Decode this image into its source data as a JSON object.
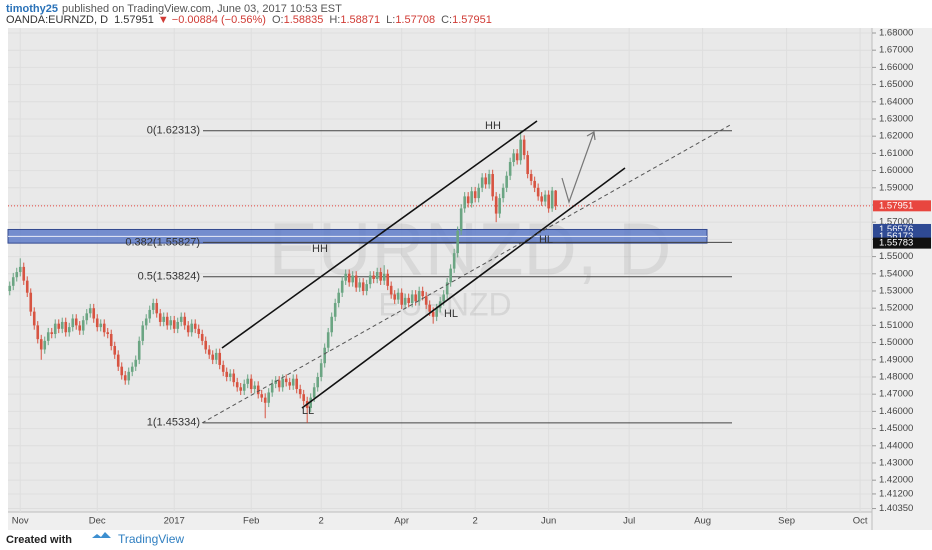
{
  "header": {
    "author": "timothy25",
    "published": "published on TradingView.com, June 03, 2017 10:53 EST",
    "symbol": "OANDA:EURNZD, D",
    "last": "1.57951",
    "change": "▼ −0.00884 (−0.56%)",
    "ohlc": [
      [
        "O:",
        "1.58835"
      ],
      [
        "H:",
        "1.58871"
      ],
      [
        "L:",
        "1.57708"
      ],
      [
        "C:",
        "1.57951"
      ]
    ]
  },
  "chart_data": {
    "type": "candlestick",
    "watermark": [
      "EURNZD, D",
      "EURNZD"
    ],
    "up_color": "#6ba583",
    "down_color": "#d75442",
    "xlim": [
      -0.5,
      246.4
    ],
    "xticks": [
      {
        "value": 3,
        "label": "Nov"
      },
      {
        "value": 25,
        "label": "Dec"
      },
      {
        "value": 47,
        "label": "2017"
      },
      {
        "value": 69,
        "label": "Feb"
      },
      {
        "value": 89,
        "label": "2"
      },
      {
        "value": 112,
        "label": "Apr"
      },
      {
        "value": 133,
        "label": "2"
      },
      {
        "value": 154,
        "label": "Jun"
      },
      {
        "value": 177,
        "label": "Jul"
      },
      {
        "value": 198,
        "label": "Aug"
      },
      {
        "value": 222,
        "label": "Sep"
      },
      {
        "value": 243,
        "label": "Oct"
      }
    ],
    "ylim": [
      1.4015,
      1.6829
    ],
    "yticks": [
      {
        "value": 1.68,
        "label": "1.68000"
      },
      {
        "value": 1.67,
        "label": "1.67000"
      },
      {
        "value": 1.66,
        "label": "1.66000"
      },
      {
        "value": 1.65,
        "label": "1.65000"
      },
      {
        "value": 1.64,
        "label": "1.64000"
      },
      {
        "value": 1.63,
        "label": "1.63000"
      },
      {
        "value": 1.62,
        "label": "1.62000"
      },
      {
        "value": 1.61,
        "label": "1.61000"
      },
      {
        "value": 1.6,
        "label": "1.60000"
      },
      {
        "value": 1.59,
        "label": "1.59000"
      },
      {
        "value": 1.58,
        "label": "1.58000"
      },
      {
        "value": 1.57,
        "label": "1.57000"
      },
      {
        "value": 1.56,
        "label": "1.56000"
      },
      {
        "value": 1.55,
        "label": "1.55000"
      },
      {
        "value": 1.54,
        "label": "1.54000"
      },
      {
        "value": 1.53,
        "label": "1.53000"
      },
      {
        "value": 1.52,
        "label": "1.52000"
      },
      {
        "value": 1.51,
        "label": "1.51000"
      },
      {
        "value": 1.5,
        "label": "1.50000"
      },
      {
        "value": 1.49,
        "label": "1.49000"
      },
      {
        "value": 1.48,
        "label": "1.48000"
      },
      {
        "value": 1.47,
        "label": "1.47000"
      },
      {
        "value": 1.46,
        "label": "1.46000"
      },
      {
        "value": 1.45,
        "label": "1.45000"
      },
      {
        "value": 1.44,
        "label": "1.44000"
      },
      {
        "value": 1.43,
        "label": "1.43000"
      },
      {
        "value": 1.42,
        "label": "1.42000"
      },
      {
        "value": 1.412,
        "label": "1.41200"
      },
      {
        "value": 1.4035,
        "label": "1.40350"
      }
    ],
    "grid": true,
    "fib_levels": [
      {
        "value": 1.62313,
        "label": "0(1.62313)"
      },
      {
        "value": 1.55827,
        "label": "0.382(1.55827)"
      },
      {
        "value": 1.53824,
        "label": "0.5(1.53824)"
      },
      {
        "value": 1.45334,
        "label": "1(1.45334)"
      }
    ],
    "zone": {
      "top": 1.56576,
      "mid": 1.56173,
      "bottom": 1.55783,
      "color": "#5f7cc9"
    },
    "price_tags": [
      {
        "value": 1.57951,
        "label": "1.57951",
        "color": "#e8463f"
      },
      {
        "value": 1.56576,
        "label": "1.56576",
        "color": "#2f4a94"
      },
      {
        "value": 1.56173,
        "label": "1.56173",
        "color": "#2f4a94"
      },
      {
        "value": 1.55783,
        "label": "1.55783",
        "color": "#111111"
      }
    ],
    "annotations": [
      "HH",
      "HH",
      "HL",
      "HL",
      "LL"
    ],
    "candles": [
      [
        1.53,
        1.5355,
        1.5275,
        1.533
      ],
      [
        1.533,
        1.5405,
        1.5305,
        1.538
      ],
      [
        1.538,
        1.5435,
        1.5355,
        1.541
      ],
      [
        1.541,
        1.549,
        1.5385,
        1.544
      ],
      [
        1.544,
        1.5465,
        1.5335,
        1.536
      ],
      [
        1.536,
        1.5385,
        1.5265,
        1.529
      ],
      [
        1.529,
        1.5315,
        1.5155,
        1.518
      ],
      [
        1.518,
        1.5205,
        1.5075,
        1.51
      ],
      [
        1.51,
        1.5125,
        1.4995,
        1.502
      ],
      [
        1.502,
        1.5045,
        1.49,
        1.496
      ],
      [
        1.496,
        1.5035,
        1.4935,
        1.501
      ],
      [
        1.501,
        1.5085,
        1.4985,
        1.506
      ],
      [
        1.506,
        1.5085,
        1.5025,
        1.505
      ],
      [
        1.505,
        1.5135,
        1.5025,
        1.511
      ],
      [
        1.511,
        1.5135,
        1.5055,
        1.508
      ],
      [
        1.508,
        1.5145,
        1.5055,
        1.512
      ],
      [
        1.512,
        1.5145,
        1.5035,
        1.506
      ],
      [
        1.506,
        1.5115,
        1.5035,
        1.509
      ],
      [
        1.509,
        1.5165,
        1.5065,
        1.514
      ],
      [
        1.514,
        1.5165,
        1.5075,
        1.51
      ],
      [
        1.51,
        1.5125,
        1.5045,
        1.507
      ],
      [
        1.507,
        1.5155,
        1.5045,
        1.513
      ],
      [
        1.513,
        1.5195,
        1.5105,
        1.517
      ],
      [
        1.517,
        1.5225,
        1.5145,
        1.52
      ],
      [
        1.52,
        1.5225,
        1.5115,
        1.514
      ],
      [
        1.514,
        1.5165,
        1.5065,
        1.509
      ],
      [
        1.509,
        1.5135,
        1.5065,
        1.511
      ],
      [
        1.511,
        1.5135,
        1.5035,
        1.506
      ],
      [
        1.506,
        1.5085,
        1.5025,
        1.505
      ],
      [
        1.505,
        1.5075,
        1.4955,
        1.498
      ],
      [
        1.498,
        1.5005,
        1.4905,
        1.493
      ],
      [
        1.493,
        1.4955,
        1.4835,
        1.486
      ],
      [
        1.486,
        1.4885,
        1.4785,
        1.481
      ],
      [
        1.481,
        1.4835,
        1.4755,
        1.478
      ],
      [
        1.478,
        1.4855,
        1.4755,
        1.483
      ],
      [
        1.483,
        1.4885,
        1.4805,
        1.486
      ],
      [
        1.486,
        1.4925,
        1.4835,
        1.49
      ],
      [
        1.49,
        1.5035,
        1.4875,
        1.501
      ],
      [
        1.501,
        1.5125,
        1.4985,
        1.51
      ],
      [
        1.51,
        1.5165,
        1.5075,
        1.514
      ],
      [
        1.514,
        1.5215,
        1.5115,
        1.519
      ],
      [
        1.519,
        1.5255,
        1.5165,
        1.523
      ],
      [
        1.523,
        1.5255,
        1.5145,
        1.517
      ],
      [
        1.517,
        1.5195,
        1.5095,
        1.512
      ],
      [
        1.512,
        1.5175,
        1.5095,
        1.515
      ],
      [
        1.515,
        1.5175,
        1.5075,
        1.51
      ],
      [
        1.51,
        1.5155,
        1.5075,
        1.513
      ],
      [
        1.513,
        1.5155,
        1.5055,
        1.508
      ],
      [
        1.508,
        1.5145,
        1.5055,
        1.512
      ],
      [
        1.512,
        1.5175,
        1.5095,
        1.515
      ],
      [
        1.515,
        1.5175,
        1.5075,
        1.51
      ],
      [
        1.51,
        1.5125,
        1.5035,
        1.506
      ],
      [
        1.506,
        1.5135,
        1.5035,
        1.511
      ],
      [
        1.511,
        1.5135,
        1.5055,
        1.508
      ],
      [
        1.508,
        1.5105,
        1.5025,
        1.505
      ],
      [
        1.505,
        1.5075,
        1.4985,
        1.501
      ],
      [
        1.501,
        1.5035,
        1.4935,
        1.496
      ],
      [
        1.496,
        1.4985,
        1.4905,
        1.493
      ],
      [
        1.493,
        1.4955,
        1.4875,
        1.49
      ],
      [
        1.49,
        1.4965,
        1.4875,
        1.494
      ],
      [
        1.494,
        1.4965,
        1.4845,
        1.487
      ],
      [
        1.487,
        1.4895,
        1.4805,
        1.483
      ],
      [
        1.483,
        1.4855,
        1.4775,
        1.48
      ],
      [
        1.48,
        1.4845,
        1.4775,
        1.482
      ],
      [
        1.482,
        1.4845,
        1.4745,
        1.477
      ],
      [
        1.477,
        1.4795,
        1.4715,
        1.474
      ],
      [
        1.474,
        1.4765,
        1.4695,
        1.472
      ],
      [
        1.472,
        1.4785,
        1.4695,
        1.476
      ],
      [
        1.476,
        1.4815,
        1.4735,
        1.479
      ],
      [
        1.479,
        1.4815,
        1.4705,
        1.473
      ],
      [
        1.473,
        1.4775,
        1.4705,
        1.475
      ],
      [
        1.475,
        1.4775,
        1.4675,
        1.47
      ],
      [
        1.47,
        1.4725,
        1.4655,
        1.468
      ],
      [
        1.468,
        1.4705,
        1.456,
        1.465
      ],
      [
        1.465,
        1.4735,
        1.4625,
        1.471
      ],
      [
        1.471,
        1.4785,
        1.4685,
        1.476
      ],
      [
        1.476,
        1.4805,
        1.4735,
        1.478
      ],
      [
        1.478,
        1.4805,
        1.4715,
        1.474
      ],
      [
        1.474,
        1.4815,
        1.4715,
        1.479
      ],
      [
        1.479,
        1.4815,
        1.4745,
        1.477
      ],
      [
        1.477,
        1.4795,
        1.4725,
        1.475
      ],
      [
        1.475,
        1.4815,
        1.4725,
        1.479
      ],
      [
        1.479,
        1.4815,
        1.4705,
        1.473
      ],
      [
        1.473,
        1.4755,
        1.4675,
        1.47
      ],
      [
        1.47,
        1.4725,
        1.4635,
        1.466
      ],
      [
        1.466,
        1.4685,
        1.45334,
        1.462
      ],
      [
        1.462,
        1.4705,
        1.4595,
        1.468
      ],
      [
        1.468,
        1.4765,
        1.4655,
        1.474
      ],
      [
        1.474,
        1.4825,
        1.4715,
        1.48
      ],
      [
        1.48,
        1.4905,
        1.4775,
        1.488
      ],
      [
        1.488,
        1.4995,
        1.4855,
        1.497
      ],
      [
        1.497,
        1.5085,
        1.4945,
        1.506
      ],
      [
        1.506,
        1.5175,
        1.5035,
        1.515
      ],
      [
        1.515,
        1.5255,
        1.5125,
        1.523
      ],
      [
        1.523,
        1.5315,
        1.5205,
        1.529
      ],
      [
        1.529,
        1.5385,
        1.5265,
        1.536
      ],
      [
        1.536,
        1.5425,
        1.5335,
        1.54
      ],
      [
        1.54,
        1.5425,
        1.5325,
        1.535
      ],
      [
        1.535,
        1.5415,
        1.5325,
        1.539
      ],
      [
        1.539,
        1.5415,
        1.5295,
        1.532
      ],
      [
        1.532,
        1.5375,
        1.5295,
        1.535
      ],
      [
        1.535,
        1.5375,
        1.5275,
        1.53
      ],
      [
        1.53,
        1.5365,
        1.5275,
        1.534
      ],
      [
        1.534,
        1.5415,
        1.5315,
        1.539
      ],
      [
        1.539,
        1.5415,
        1.5345,
        1.537
      ],
      [
        1.537,
        1.5435,
        1.5345,
        1.541
      ],
      [
        1.541,
        1.5435,
        1.5335,
        1.536
      ],
      [
        1.536,
        1.545,
        1.5335,
        1.54
      ],
      [
        1.54,
        1.5425,
        1.5305,
        1.533
      ],
      [
        1.533,
        1.5355,
        1.5255,
        1.528
      ],
      [
        1.528,
        1.5305,
        1.5225,
        1.525
      ],
      [
        1.525,
        1.5315,
        1.5225,
        1.529
      ],
      [
        1.529,
        1.5315,
        1.5195,
        1.522
      ],
      [
        1.522,
        1.5285,
        1.5195,
        1.526
      ],
      [
        1.526,
        1.5285,
        1.5205,
        1.523
      ],
      [
        1.523,
        1.5305,
        1.5205,
        1.528
      ],
      [
        1.528,
        1.5305,
        1.5215,
        1.524
      ],
      [
        1.524,
        1.5325,
        1.5215,
        1.53
      ],
      [
        1.53,
        1.5325,
        1.5245,
        1.527
      ],
      [
        1.527,
        1.5295,
        1.5195,
        1.522
      ],
      [
        1.522,
        1.5245,
        1.5155,
        1.518
      ],
      [
        1.518,
        1.5205,
        1.511,
        1.515
      ],
      [
        1.515,
        1.5225,
        1.5125,
        1.52
      ],
      [
        1.52,
        1.5265,
        1.5175,
        1.524
      ],
      [
        1.524,
        1.5305,
        1.5215,
        1.528
      ],
      [
        1.528,
        1.5375,
        1.5255,
        1.535
      ],
      [
        1.535,
        1.5455,
        1.5325,
        1.543
      ],
      [
        1.543,
        1.5545,
        1.5405,
        1.552
      ],
      [
        1.552,
        1.5675,
        1.5495,
        1.565
      ],
      [
        1.565,
        1.5805,
        1.5625,
        1.578
      ],
      [
        1.578,
        1.5875,
        1.5755,
        1.585
      ],
      [
        1.585,
        1.5875,
        1.5785,
        1.581
      ],
      [
        1.581,
        1.5905,
        1.5785,
        1.588
      ],
      [
        1.588,
        1.5905,
        1.5815,
        1.584
      ],
      [
        1.584,
        1.5925,
        1.5815,
        1.59
      ],
      [
        1.59,
        1.5985,
        1.5875,
        1.596
      ],
      [
        1.596,
        1.5985,
        1.5895,
        1.592
      ],
      [
        1.592,
        1.6005,
        1.5895,
        1.598
      ],
      [
        1.598,
        1.6005,
        1.5825,
        1.585
      ],
      [
        1.585,
        1.5875,
        1.57,
        1.575
      ],
      [
        1.575,
        1.5865,
        1.5725,
        1.584
      ],
      [
        1.584,
        1.5925,
        1.5815,
        1.59
      ],
      [
        1.59,
        1.5995,
        1.5875,
        1.597
      ],
      [
        1.597,
        1.6075,
        1.5945,
        1.605
      ],
      [
        1.605,
        1.6125,
        1.6025,
        1.61
      ],
      [
        1.61,
        1.6125,
        1.6035,
        1.606
      ],
      [
        1.606,
        1.62313,
        1.6035,
        1.618
      ],
      [
        1.618,
        1.6205,
        1.6065,
        1.609
      ],
      [
        1.609,
        1.6115,
        1.5955,
        1.598
      ],
      [
        1.598,
        1.6005,
        1.5915,
        1.594
      ],
      [
        1.594,
        1.5965,
        1.5875,
        1.59
      ],
      [
        1.59,
        1.5925,
        1.5825,
        1.585
      ],
      [
        1.585,
        1.5875,
        1.5795,
        1.582
      ],
      [
        1.582,
        1.5885,
        1.5795,
        1.586
      ],
      [
        1.586,
        1.5885,
        1.5755,
        1.578
      ],
      [
        1.578,
        1.5905,
        1.576,
        1.58835
      ],
      [
        1.58835,
        1.58871,
        1.57708,
        1.57951
      ]
    ]
  },
  "footer": {
    "created": "Created with",
    "brand": "TradingView"
  }
}
